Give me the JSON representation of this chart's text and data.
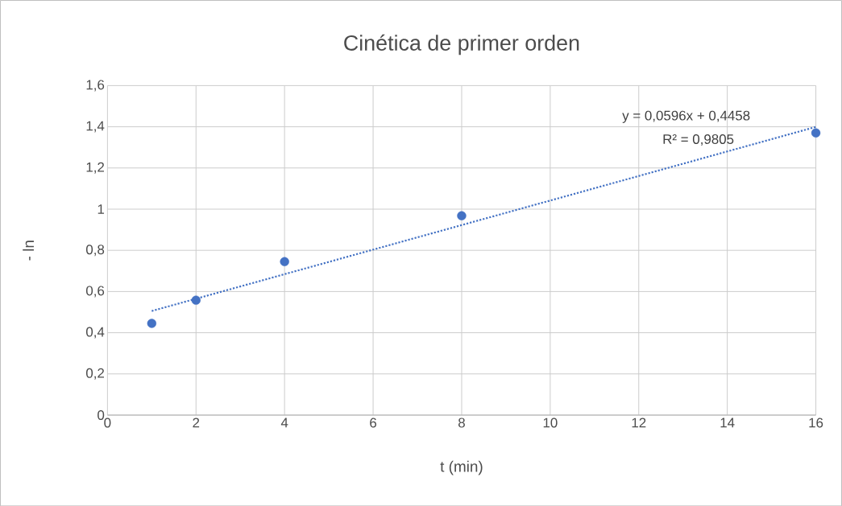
{
  "chart_data": {
    "type": "scatter",
    "title": "Cinética de primer orden",
    "xlabel": "t (min)",
    "ylabel": "- ln",
    "series": [
      {
        "type": "scatter",
        "color": "#4472c4",
        "marker": "circle",
        "x": [
          1,
          2,
          4,
          8,
          16
        ],
        "values": [
          0.445,
          0.558,
          0.745,
          0.968,
          1.37
        ]
      },
      {
        "type": "line",
        "color": "#4472c4",
        "line_style": "dotted",
        "marker": "none",
        "x": [
          1,
          16
        ],
        "values": [
          0.5054,
          1.3994
        ]
      }
    ],
    "xlim": [
      0,
      16
    ],
    "xticks": [
      0,
      2,
      4,
      6,
      8,
      10,
      12,
      14,
      16
    ],
    "ylim": [
      0,
      1.6
    ],
    "yticks": [
      0,
      {
        "value": 0.2,
        "label": "0,2"
      },
      {
        "value": 0.4,
        "label": "0,4"
      },
      {
        "value": 0.6,
        "label": "0,6"
      },
      {
        "value": 0.8,
        "label": "0,8"
      },
      1,
      {
        "value": 1.2,
        "label": "1,2"
      },
      {
        "value": 1.4,
        "label": "1,4"
      },
      {
        "value": 1.6,
        "label": "1,6"
      }
    ],
    "grid": true,
    "annotations": [
      "y = 0,0596x + 0,4458",
      "R² = 0,9805"
    ]
  }
}
